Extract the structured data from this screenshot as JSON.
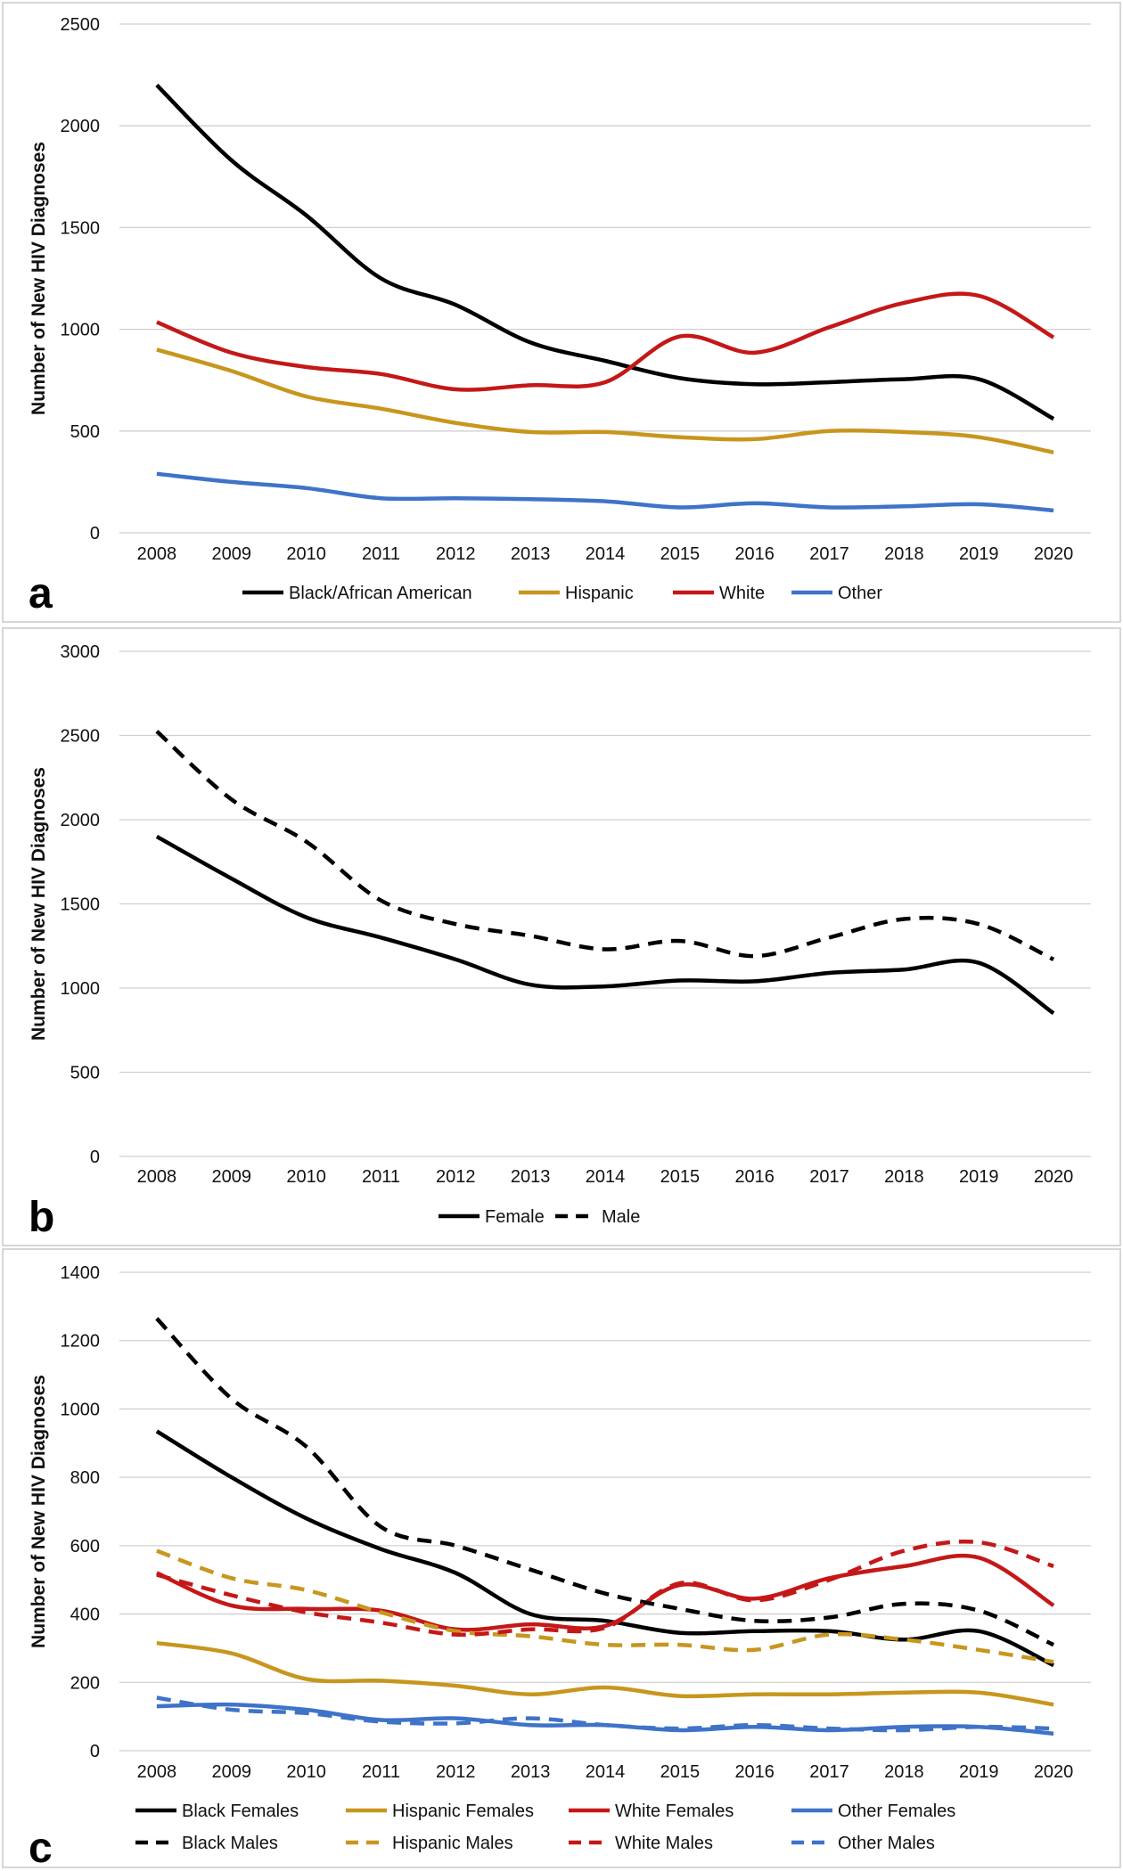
{
  "chart_data": [
    {
      "type": "line",
      "panel_label": "a",
      "ylabel": "Number of New HIV Diagnoses",
      "ylim": [
        0,
        2500
      ],
      "yticks": [
        "0",
        "500",
        "1000",
        "1500",
        "2000",
        "2500"
      ],
      "x": [
        "2008",
        "2009",
        "2010",
        "2011",
        "2012",
        "2013",
        "2014",
        "2015",
        "2016",
        "2017",
        "2018",
        "2019",
        "2020"
      ],
      "legend_position": "bottom",
      "series": [
        {
          "name": "Black/African American",
          "color": "#000000",
          "dash": "solid",
          "values": [
            2200,
            1830,
            1560,
            1250,
            1120,
            935,
            845,
            760,
            730,
            740,
            755,
            755,
            560
          ]
        },
        {
          "name": "Hispanic",
          "color": "#c8961e",
          "dash": "solid",
          "values": [
            900,
            795,
            670,
            610,
            540,
            495,
            495,
            470,
            460,
            500,
            495,
            470,
            395
          ]
        },
        {
          "name": "White",
          "color": "#c41818",
          "dash": "solid",
          "values": [
            1035,
            885,
            815,
            780,
            705,
            725,
            740,
            965,
            885,
            1010,
            1130,
            1165,
            960
          ]
        },
        {
          "name": "Other",
          "color": "#3f73c8",
          "dash": "solid",
          "values": [
            290,
            250,
            220,
            170,
            170,
            165,
            155,
            125,
            145,
            125,
            130,
            140,
            110
          ]
        }
      ]
    },
    {
      "type": "line",
      "panel_label": "b",
      "ylabel": "Number of New HIV Diagnoses",
      "ylim": [
        0,
        3000
      ],
      "yticks": [
        "0",
        "500",
        "1000",
        "1500",
        "2000",
        "2500",
        "3000"
      ],
      "x": [
        "2008",
        "2009",
        "2010",
        "2011",
        "2012",
        "2013",
        "2014",
        "2015",
        "2016",
        "2017",
        "2018",
        "2019",
        "2020"
      ],
      "legend_position": "bottom",
      "series": [
        {
          "name": "Female",
          "color": "#000000",
          "dash": "solid",
          "values": [
            1900,
            1650,
            1420,
            1300,
            1170,
            1020,
            1010,
            1045,
            1040,
            1090,
            1110,
            1150,
            850
          ]
        },
        {
          "name": "Male",
          "color": "#000000",
          "dash": "dashed",
          "values": [
            2525,
            2120,
            1870,
            1520,
            1380,
            1310,
            1230,
            1280,
            1190,
            1300,
            1410,
            1380,
            1170
          ]
        }
      ]
    },
    {
      "type": "line",
      "panel_label": "c",
      "ylabel": "Number of New HIV Diagnoses",
      "ylim": [
        0,
        1400
      ],
      "yticks": [
        "0",
        "200",
        "400",
        "600",
        "800",
        "1000",
        "1200",
        "1400"
      ],
      "x": [
        "2008",
        "2009",
        "2010",
        "2011",
        "2012",
        "2013",
        "2014",
        "2015",
        "2016",
        "2017",
        "2018",
        "2019",
        "2020"
      ],
      "legend_position": "bottom",
      "series": [
        {
          "name": "Black Females",
          "color": "#000000",
          "dash": "solid",
          "values": [
            935,
            800,
            680,
            590,
            520,
            400,
            380,
            345,
            350,
            350,
            325,
            350,
            250
          ]
        },
        {
          "name": "Hispanic Females",
          "color": "#c8961e",
          "dash": "solid",
          "values": [
            315,
            285,
            210,
            205,
            190,
            165,
            185,
            160,
            165,
            165,
            170,
            170,
            135
          ]
        },
        {
          "name": "White Females",
          "color": "#c41818",
          "dash": "solid",
          "values": [
            520,
            425,
            415,
            410,
            355,
            370,
            365,
            485,
            445,
            505,
            540,
            565,
            425
          ]
        },
        {
          "name": "Other Females",
          "color": "#3f73c8",
          "dash": "solid",
          "values": [
            130,
            135,
            120,
            90,
            95,
            75,
            75,
            60,
            70,
            60,
            70,
            70,
            50
          ]
        },
        {
          "name": "Black Males",
          "color": "#000000",
          "dash": "dashed",
          "values": [
            1265,
            1030,
            890,
            655,
            600,
            530,
            460,
            415,
            380,
            390,
            430,
            410,
            310
          ]
        },
        {
          "name": "Hispanic Males",
          "color": "#c8961e",
          "dash": "dashed",
          "values": [
            585,
            505,
            470,
            405,
            350,
            335,
            310,
            310,
            295,
            340,
            325,
            295,
            260
          ]
        },
        {
          "name": "White Males",
          "color": "#c41818",
          "dash": "dashed",
          "values": [
            515,
            455,
            405,
            375,
            340,
            355,
            360,
            490,
            440,
            500,
            585,
            610,
            540
          ]
        },
        {
          "name": "Other Males",
          "color": "#3f73c8",
          "dash": "dashed",
          "values": [
            155,
            120,
            110,
            85,
            80,
            95,
            75,
            65,
            75,
            65,
            60,
            70,
            65
          ]
        }
      ]
    }
  ]
}
